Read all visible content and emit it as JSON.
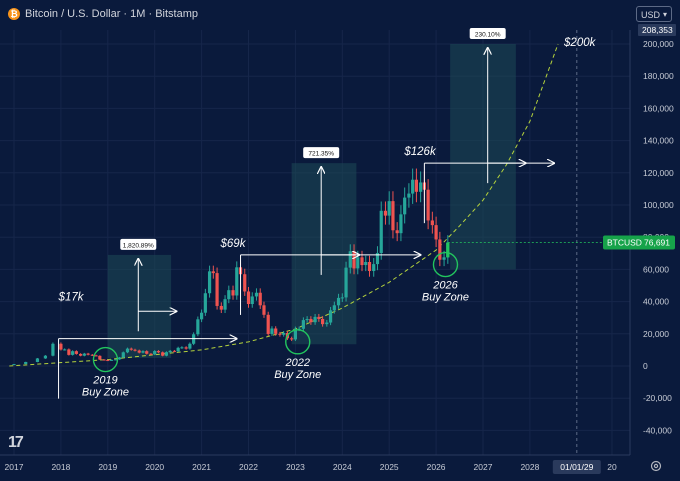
{
  "header": {
    "title": "Bitcoin / U.S. Dollar · 1M · Bitstamp",
    "currency": "USD",
    "logo_glyph": "₿",
    "tv_logo": "17"
  },
  "colors": {
    "background": "#0a1a3c",
    "grid": "#16264a",
    "up": "#26a69a",
    "down": "#ef5350",
    "bright_up": "#22c55e",
    "curve": "#b5d33c",
    "zone_fill": "#1d4a55",
    "zone_circle": "#22c55e",
    "price_label_bg": "#16a34a",
    "annotation": "#ffffff"
  },
  "chart_data": {
    "type": "candlestick",
    "y_unit": "USD",
    "ylim": [
      -45000,
      215000
    ],
    "y_ticks": [
      "-40,000",
      "-20,000",
      "0",
      "20,000",
      "40,000",
      "60,000",
      "80,000",
      "100,000",
      "120,000",
      "140,000",
      "160,000",
      "180,000",
      "200,000"
    ],
    "x_ticks": [
      "2017",
      "2018",
      "2019",
      "2020",
      "2021",
      "2022",
      "2023",
      "2024",
      "2025",
      "2026",
      "2027",
      "2028",
      "20"
    ],
    "x_cursor_label": "01/01/29",
    "top_value_label": "208,353",
    "current_price": {
      "symbol": "BTCUSD",
      "value": "76,691",
      "raw": 76691
    },
    "candles": [
      {
        "t": 2017.0,
        "o": 1000,
        "c": 1200
      },
      {
        "t": 2017.25,
        "o": 1200,
        "c": 2500
      },
      {
        "t": 2017.5,
        "o": 2500,
        "c": 4700
      },
      {
        "t": 2017.67,
        "o": 4700,
        "c": 6400
      },
      {
        "t": 2017.83,
        "o": 6400,
        "c": 13800
      },
      {
        "t": 2018.0,
        "o": 13800,
        "c": 10200
      },
      {
        "t": 2018.08,
        "o": 10200,
        "c": 10300
      },
      {
        "t": 2018.17,
        "o": 10300,
        "c": 6900
      },
      {
        "t": 2018.25,
        "o": 6900,
        "c": 9200
      },
      {
        "t": 2018.33,
        "o": 9200,
        "c": 7500
      },
      {
        "t": 2018.42,
        "o": 7500,
        "c": 6400
      },
      {
        "t": 2018.5,
        "o": 6400,
        "c": 7700
      },
      {
        "t": 2018.58,
        "o": 7700,
        "c": 7000
      },
      {
        "t": 2018.67,
        "o": 7000,
        "c": 6600
      },
      {
        "t": 2018.75,
        "o": 6600,
        "c": 6300
      },
      {
        "t": 2018.83,
        "o": 6300,
        "c": 4000
      },
      {
        "t": 2018.92,
        "o": 4000,
        "c": 3700
      },
      {
        "t": 2019.0,
        "o": 3700,
        "c": 3400
      },
      {
        "t": 2019.08,
        "o": 3400,
        "c": 3800
      },
      {
        "t": 2019.17,
        "o": 3800,
        "c": 4100
      },
      {
        "t": 2019.25,
        "o": 4100,
        "c": 5300
      },
      {
        "t": 2019.33,
        "o": 5300,
        "c": 8500
      },
      {
        "t": 2019.42,
        "o": 8500,
        "c": 10800
      },
      {
        "t": 2019.5,
        "o": 10800,
        "c": 10100
      },
      {
        "t": 2019.58,
        "o": 10100,
        "c": 9600
      },
      {
        "t": 2019.67,
        "o": 9600,
        "c": 8300
      },
      {
        "t": 2019.75,
        "o": 8300,
        "c": 9200
      },
      {
        "t": 2019.83,
        "o": 9200,
        "c": 7600
      },
      {
        "t": 2019.92,
        "o": 7600,
        "c": 7200
      },
      {
        "t": 2020.0,
        "o": 7200,
        "c": 9300
      },
      {
        "t": 2020.08,
        "o": 9300,
        "c": 8500
      },
      {
        "t": 2020.17,
        "o": 8500,
        "c": 6400
      },
      {
        "t": 2020.25,
        "o": 6400,
        "c": 8600
      },
      {
        "t": 2020.33,
        "o": 8600,
        "c": 9400
      },
      {
        "t": 2020.42,
        "o": 9400,
        "c": 9100
      },
      {
        "t": 2020.5,
        "o": 9100,
        "c": 11300
      },
      {
        "t": 2020.58,
        "o": 11300,
        "c": 11600
      },
      {
        "t": 2020.67,
        "o": 11600,
        "c": 10800
      },
      {
        "t": 2020.75,
        "o": 10800,
        "c": 13800
      },
      {
        "t": 2020.83,
        "o": 13800,
        "c": 19700
      },
      {
        "t": 2020.92,
        "o": 19700,
        "c": 29000
      },
      {
        "t": 2021.0,
        "o": 29000,
        "c": 33100
      },
      {
        "t": 2021.08,
        "o": 33100,
        "c": 45200
      },
      {
        "t": 2021.17,
        "o": 45200,
        "c": 58800
      },
      {
        "t": 2021.25,
        "o": 58800,
        "c": 57700
      },
      {
        "t": 2021.33,
        "o": 57700,
        "c": 37300
      },
      {
        "t": 2021.42,
        "o": 37300,
        "c": 35000
      },
      {
        "t": 2021.5,
        "o": 35000,
        "c": 41500
      },
      {
        "t": 2021.58,
        "o": 41500,
        "c": 47100
      },
      {
        "t": 2021.67,
        "o": 47100,
        "c": 43800
      },
      {
        "t": 2021.75,
        "o": 43800,
        "c": 61300
      },
      {
        "t": 2021.83,
        "o": 61300,
        "c": 57000
      },
      {
        "t": 2021.92,
        "o": 57000,
        "c": 46300
      },
      {
        "t": 2022.0,
        "o": 46300,
        "c": 38500
      },
      {
        "t": 2022.08,
        "o": 38500,
        "c": 43200
      },
      {
        "t": 2022.17,
        "o": 43200,
        "c": 45500
      },
      {
        "t": 2022.25,
        "o": 45500,
        "c": 37700
      },
      {
        "t": 2022.33,
        "o": 37700,
        "c": 31800
      },
      {
        "t": 2022.42,
        "o": 31800,
        "c": 19900
      },
      {
        "t": 2022.5,
        "o": 19900,
        "c": 23300
      },
      {
        "t": 2022.58,
        "o": 23300,
        "c": 20000
      },
      {
        "t": 2022.67,
        "o": 20000,
        "c": 19400
      },
      {
        "t": 2022.75,
        "o": 19400,
        "c": 20500
      },
      {
        "t": 2022.83,
        "o": 20500,
        "c": 17200
      },
      {
        "t": 2022.92,
        "o": 17200,
        "c": 16500
      },
      {
        "t": 2023.0,
        "o": 16500,
        "c": 23100
      },
      {
        "t": 2023.08,
        "o": 23100,
        "c": 23100
      },
      {
        "t": 2023.17,
        "o": 23100,
        "c": 28500
      },
      {
        "t": 2023.25,
        "o": 28500,
        "c": 29200
      },
      {
        "t": 2023.33,
        "o": 29200,
        "c": 27200
      },
      {
        "t": 2023.42,
        "o": 27200,
        "c": 30500
      },
      {
        "t": 2023.5,
        "o": 30500,
        "c": 29200
      },
      {
        "t": 2023.58,
        "o": 29200,
        "c": 26000
      },
      {
        "t": 2023.67,
        "o": 26000,
        "c": 27000
      },
      {
        "t": 2023.75,
        "o": 27000,
        "c": 34600
      },
      {
        "t": 2023.83,
        "o": 34600,
        "c": 37700
      },
      {
        "t": 2023.92,
        "o": 37700,
        "c": 42300
      },
      {
        "t": 2024.0,
        "o": 42300,
        "c": 42600
      },
      {
        "t": 2024.08,
        "o": 42600,
        "c": 61100
      },
      {
        "t": 2024.17,
        "o": 61100,
        "c": 71300
      },
      {
        "t": 2024.25,
        "o": 71300,
        "c": 60600
      },
      {
        "t": 2024.33,
        "o": 60600,
        "c": 67500
      },
      {
        "t": 2024.42,
        "o": 67500,
        "c": 62700
      },
      {
        "t": 2024.5,
        "o": 62700,
        "c": 64600
      },
      {
        "t": 2024.58,
        "o": 64600,
        "c": 59000
      },
      {
        "t": 2024.67,
        "o": 59000,
        "c": 63300
      },
      {
        "t": 2024.75,
        "o": 63300,
        "c": 70200
      },
      {
        "t": 2024.83,
        "o": 70200,
        "c": 96400
      },
      {
        "t": 2024.92,
        "o": 96400,
        "c": 93400
      },
      {
        "t": 2025.0,
        "o": 93400,
        "c": 102400
      },
      {
        "t": 2025.08,
        "o": 102400,
        "c": 84300
      },
      {
        "t": 2025.17,
        "o": 84300,
        "c": 82500
      },
      {
        "t": 2025.25,
        "o": 82500,
        "c": 94200
      },
      {
        "t": 2025.33,
        "o": 94200,
        "c": 104600
      },
      {
        "t": 2025.42,
        "o": 104600,
        "c": 107100
      },
      {
        "t": 2025.5,
        "o": 107100,
        "c": 115700
      },
      {
        "t": 2025.58,
        "o": 115700,
        "c": 108200
      },
      {
        "t": 2025.67,
        "o": 108200,
        "c": 114000
      },
      {
        "t": 2025.75,
        "o": 114000,
        "c": 109500
      },
      {
        "t": 2025.83,
        "o": 109500,
        "c": 90400
      },
      {
        "t": 2025.92,
        "o": 90400,
        "c": 87500
      },
      {
        "t": 2026.0,
        "o": 87500,
        "c": 78600
      },
      {
        "t": 2026.08,
        "o": 78600,
        "c": 66000
      },
      {
        "t": 2026.17,
        "o": 66000,
        "c": 67500
      },
      {
        "t": 2026.25,
        "o": 67500,
        "c": 76691
      }
    ],
    "curve": [
      {
        "t": 2016.9,
        "v": 0
      },
      {
        "t": 2019,
        "v": 4000
      },
      {
        "t": 2020,
        "v": 7000
      },
      {
        "t": 2021,
        "v": 10000
      },
      {
        "t": 2022,
        "v": 15000
      },
      {
        "t": 2023,
        "v": 23000
      },
      {
        "t": 2024,
        "v": 36000
      },
      {
        "t": 2025,
        "v": 52000
      },
      {
        "t": 2026,
        "v": 72000
      },
      {
        "t": 2026.5,
        "v": 87000
      },
      {
        "t": 2027,
        "v": 103000
      },
      {
        "t": 2027.5,
        "v": 125000
      },
      {
        "t": 2028,
        "v": 152000
      },
      {
        "t": 2028.6,
        "v": 200000
      }
    ],
    "peaks": [
      {
        "label": "$17k",
        "t": 2017.95,
        "v": 17000,
        "arrow_to_t": 2021.83,
        "pct": "1,820.89%",
        "pct_t": 2019.65
      },
      {
        "label": "$69k",
        "t": 2021.83,
        "v": 69000,
        "arrow_to_t": 2025.75,
        "pct": "721.35%",
        "pct_t": 2023.55
      },
      {
        "label": "$126k",
        "t": 2025.75,
        "v": 126000,
        "arrow_to_t": 2028.6,
        "pct": "230.10%",
        "pct_t": 2027.1
      },
      {
        "label": "$200k",
        "t": 2028.6,
        "v": 200000
      }
    ],
    "zones": [
      {
        "t0": 2019.0,
        "t1": 2020.35,
        "v0": 5000,
        "v1": 69000,
        "mid_t": 2019.65,
        "mid_v": 34000,
        "right_arrow_v": 34000
      },
      {
        "t0": 2022.92,
        "t1": 2024.3,
        "v0": 13500,
        "v1": 126000,
        "mid_t": 2023.55,
        "mid_v": 69000,
        "right_arrow_v": 69000
      },
      {
        "t0": 2026.3,
        "t1": 2027.7,
        "v0": 60000,
        "v1": 200000,
        "mid_t": 2027.1,
        "mid_v": 126000,
        "right_arrow_v": 126000
      }
    ],
    "buy_zones": [
      {
        "t": 2018.95,
        "v": 4000,
        "label1": "2019",
        "label2": "Buy Zone"
      },
      {
        "t": 2023.05,
        "v": 15000,
        "label1": "2022",
        "label2": "Buy Zone"
      },
      {
        "t": 2026.2,
        "v": 63000,
        "label1": "2026",
        "label2": "Buy Zone"
      }
    ]
  }
}
